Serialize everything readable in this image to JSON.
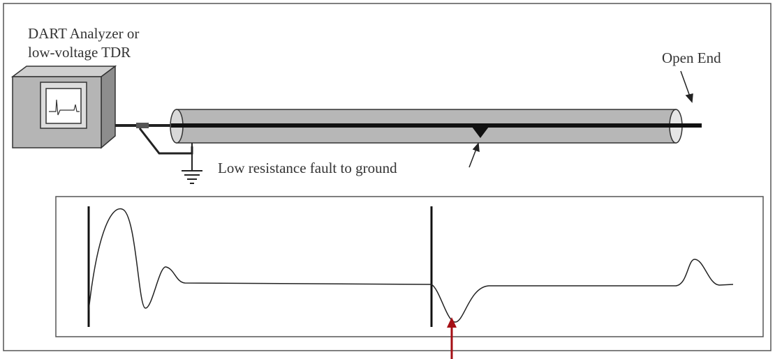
{
  "device_label": {
    "lines": [
      "DART Analyzer or",
      "low-voltage TDR"
    ]
  },
  "open_end_label": "Open End",
  "fault_label": "Low resistance fault to ground"
}
